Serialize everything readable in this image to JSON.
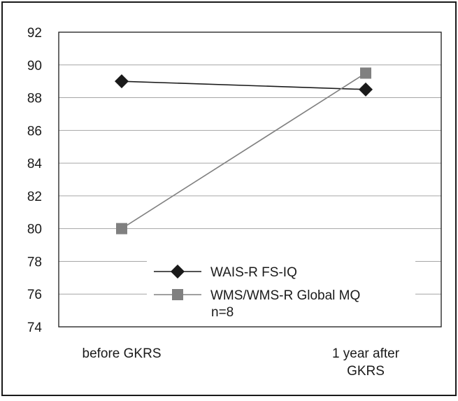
{
  "chart_data": {
    "type": "line",
    "categories": [
      "before GKRS",
      "1 year after GKRS"
    ],
    "category_display": [
      [
        "before GKRS"
      ],
      [
        "1 year after",
        "GKRS"
      ]
    ],
    "series": [
      {
        "name": "WAIS-R FS-IQ",
        "values": [
          89.0,
          88.5
        ],
        "color": "#1a1a1a",
        "marker": "diamond"
      },
      {
        "name": "WMS/WMS-R Global MQ",
        "values": [
          80.0,
          89.5
        ],
        "color": "#808080",
        "marker": "square"
      }
    ],
    "y_ticks": [
      "92",
      "90",
      "88",
      "86",
      "84",
      "82",
      "80",
      "78",
      "76",
      "74"
    ],
    "ylim": [
      74,
      92
    ],
    "grid": true,
    "legend_position": "bottom-center",
    "annotation": "n=8"
  }
}
